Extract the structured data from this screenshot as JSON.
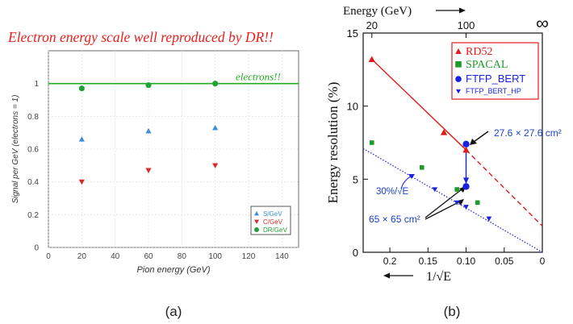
{
  "chart_data": [
    {
      "type": "scatter",
      "panel_label": "(a)",
      "title": "Electron energy scale well reproduced by DR!!",
      "xlabel": "Pion energy (GeV)",
      "ylabel": "Signal per GeV (electrons = 1)",
      "xlim": [
        0,
        150
      ],
      "ylim": [
        0,
        1.2
      ],
      "x_ticks": [
        "0",
        "20",
        "40",
        "60",
        "80",
        "100",
        "120",
        "140"
      ],
      "y_ticks": [
        "0",
        "0.2",
        "0.4",
        "0.6",
        "0.8",
        "1"
      ],
      "grid": true,
      "legend": "bottom-right",
      "reference_line": {
        "y": 1.0,
        "label": "electrons!!",
        "color": "#22aa22"
      },
      "series": [
        {
          "name": "S/GeV",
          "marker": "triangle-up",
          "color": "#3d8fd9",
          "x": [
            20,
            60,
            100
          ],
          "y": [
            0.66,
            0.71,
            0.73
          ]
        },
        {
          "name": "C/GeV",
          "marker": "triangle-down",
          "color": "#d92b2b",
          "x": [
            20,
            60,
            100
          ],
          "y": [
            0.4,
            0.47,
            0.5
          ]
        },
        {
          "name": "DR/GeV",
          "marker": "circle",
          "color": "#22a03a",
          "x": [
            20,
            60,
            100
          ],
          "y": [
            0.97,
            0.99,
            1.0
          ]
        }
      ]
    },
    {
      "type": "scatter",
      "panel_label": "(b)",
      "xlabel": "1/√E",
      "ylabel": "Energy resolution (%)",
      "top_axis_label": "Energy (GeV)",
      "xlim": [
        0.235,
        0
      ],
      "ylim": [
        0,
        15
      ],
      "x_ticks": [
        {
          "v": 0.2,
          "label": "0.2"
        },
        {
          "v": 0.15,
          "label": "0.15"
        },
        {
          "v": 0.1,
          "label": "0.10"
        },
        {
          "v": 0.05,
          "label": "0.05"
        },
        {
          "v": 0,
          "label": "0"
        }
      ],
      "y_ticks": [
        "0",
        "5",
        "10",
        "15"
      ],
      "top_ticks": [
        {
          "v": 0.2236,
          "label": "20"
        },
        {
          "v": 0.1,
          "label": "100"
        },
        {
          "v": 0,
          "label": "∞"
        }
      ],
      "legend": "top-right",
      "series": [
        {
          "name": "RD52",
          "marker": "triangle-up",
          "color": "#e31a1a",
          "x": [
            0.2236,
            0.1291,
            0.1
          ],
          "y": [
            13.2,
            8.2,
            7.0
          ]
        },
        {
          "name": "SPACAL",
          "marker": "square",
          "color": "#1f9a2a",
          "x": [
            0.2236,
            0.158,
            0.112,
            0.085
          ],
          "y": [
            7.5,
            5.8,
            4.3,
            3.4
          ]
        },
        {
          "name": "FTFP_BERT",
          "marker": "circle",
          "color": "#1a22e0",
          "x": [
            0.1,
            0.1
          ],
          "y": [
            7.4,
            4.5
          ]
        },
        {
          "name": "FTFP_BERT_HP",
          "marker": "triangle-down",
          "color": "#1a22e0",
          "x": [
            0.141,
            0.112,
            0.1,
            0.07
          ],
          "y": [
            4.3,
            3.4,
            3.1,
            2.3
          ]
        }
      ],
      "fit_lines": [
        {
          "color": "#e31a1a",
          "style": "solid",
          "from": [
            0.2236,
            13.2
          ],
          "to": [
            0.1,
            7.0
          ]
        },
        {
          "color": "#e31a1a",
          "style": "dashed",
          "from": [
            0.1,
            7.0
          ],
          "to": [
            0.0,
            1.8
          ]
        },
        {
          "color": "#1a22e0",
          "style": "dotted",
          "from": [
            0.235,
            7.1
          ],
          "to": [
            0.0,
            0.0
          ]
        }
      ],
      "annotations": {
        "size_small": "27.6 × 27.6 cm²",
        "size_large": "65 × 65 cm²",
        "stochastic": "30%/√E"
      }
    }
  ]
}
